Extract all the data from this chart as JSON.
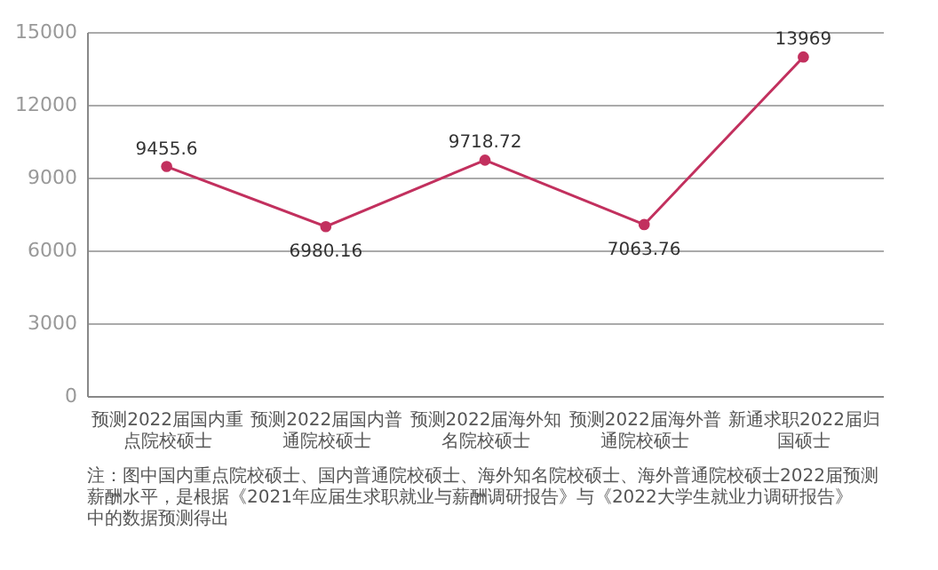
{
  "chart_data": {
    "type": "line",
    "categories": [
      "预测2022届国内重点院校硕士",
      "预测2022届国内普通院校硕士",
      "预测2022届海外知名院校硕士",
      "预测2022届海外普通院校硕士",
      "新通求职2022届归国硕士"
    ],
    "series": [
      {
        "color": "#c2305e",
        "values": [
          9455.6,
          6980.16,
          9718.72,
          7063.76,
          13969
        ]
      }
    ],
    "ylim": [
      0,
      15000
    ],
    "yticks": [
      0,
      3000,
      6000,
      9000,
      12000,
      15000
    ],
    "grid": "y",
    "marker": "circle",
    "data_labels": true,
    "annotations": [
      "注：图中国内重点院校硕士、国内普通院校硕士、海外知名院校硕士、海外普通院校硕士2022届预测薪酬水平，是根据《2021年应届生求职就业与薪酬调研报告》与《2022大学生就业力调研报告》中的数据预测得出"
    ]
  }
}
